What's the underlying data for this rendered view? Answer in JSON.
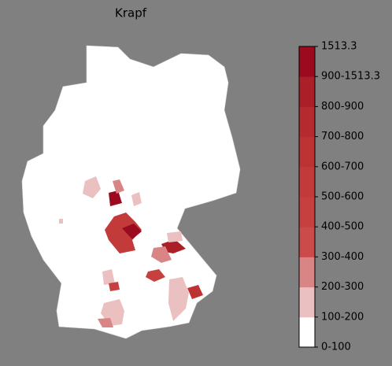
{
  "title": "Krapf",
  "colorbar": {
    "labels": [
      "0-100",
      "100-200",
      "200-300",
      "300-400",
      "400-500",
      "500-600",
      "600-700",
      "700-800",
      "800-900",
      "900-1513.3",
      "1513.3"
    ],
    "colors": [
      "#ffffff",
      "#ebc0c0",
      "#d98585",
      "#cb4a4a",
      "#c64040",
      "#c23a3a",
      "#bd3333",
      "#b42a2e",
      "#aa1f28",
      "#9c0a20"
    ]
  }
}
